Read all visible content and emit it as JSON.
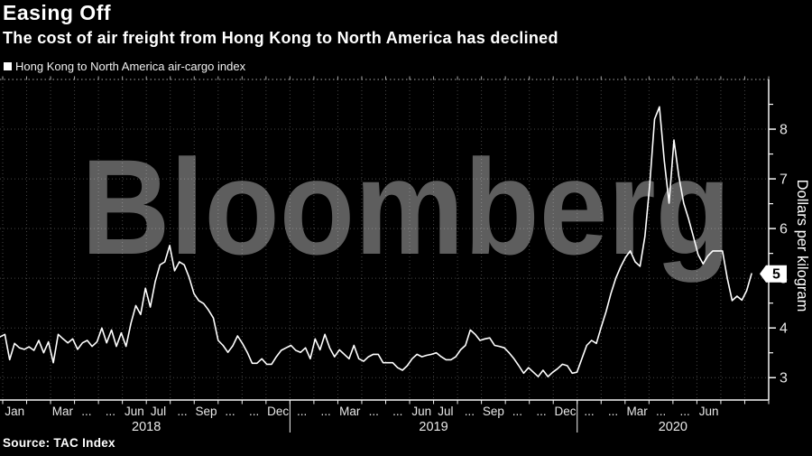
{
  "header": {
    "title": "Easing Off",
    "subtitle": "The cost of air freight from Hong Kong to North America has declined"
  },
  "legend": {
    "label": "Hong Kong to North America air-cargo index"
  },
  "source": "Source: TAC Index",
  "watermark": "Bloomberg",
  "colors": {
    "background": "#000000",
    "text": "#ffffff",
    "line": "#ffffff",
    "grid": "#ffffff",
    "axis": "#f5f5f5",
    "tick_label": "#e8e8e8",
    "watermark": "#5e5e5e",
    "badge_bg": "#ffffff",
    "badge_text": "#000000"
  },
  "chart_data": {
    "type": "line",
    "title": "Easing Off",
    "subtitle": "The cost of air freight from Hong Kong to North America has declined",
    "ylabel": "Dollars per kilogram",
    "xlabel": "",
    "ylim": [
      2.55,
      9.0
    ],
    "yticks": [
      3,
      4,
      5,
      6,
      7,
      8
    ],
    "minor_tick_step": 0.5,
    "grid": true,
    "legend_position": "top-left",
    "last_price_label": "5",
    "total_months": 32,
    "x_months": [
      "Jan",
      null,
      "Mar",
      "...",
      "...",
      "Jun",
      "Jul",
      "...",
      "Sep",
      "...",
      "...",
      "Dec",
      "...",
      "...",
      "Mar",
      "...",
      "...",
      "Jun",
      "Jul",
      "...",
      "Sep",
      "...",
      "...",
      "Dec",
      "...",
      "...",
      "Mar",
      "...",
      "...",
      "Jun"
    ],
    "years": [
      {
        "label": "2018",
        "start": 0,
        "end": 12
      },
      {
        "label": "2019",
        "start": 12,
        "end": 24
      },
      {
        "label": "2020",
        "start": 24,
        "end": 32
      }
    ],
    "series": [
      {
        "name": "Hong Kong to North America air-cargo index",
        "values": [
          3.82,
          3.87,
          3.36,
          3.69,
          3.6,
          3.57,
          3.62,
          3.55,
          3.75,
          3.5,
          3.72,
          3.3,
          3.87,
          3.78,
          3.7,
          3.78,
          3.57,
          3.7,
          3.75,
          3.63,
          3.72,
          4.0,
          3.7,
          3.96,
          3.63,
          3.9,
          3.63,
          4.09,
          4.45,
          4.27,
          4.8,
          4.42,
          4.93,
          5.27,
          5.33,
          5.66,
          5.15,
          5.33,
          5.27,
          5.02,
          4.69,
          4.55,
          4.49,
          4.36,
          4.2,
          3.75,
          3.65,
          3.51,
          3.64,
          3.84,
          3.69,
          3.51,
          3.29,
          3.29,
          3.38,
          3.27,
          3.27,
          3.42,
          3.55,
          3.6,
          3.65,
          3.55,
          3.51,
          3.6,
          3.38,
          3.78,
          3.56,
          3.87,
          3.6,
          3.42,
          3.56,
          3.47,
          3.38,
          3.65,
          3.38,
          3.33,
          3.42,
          3.47,
          3.47,
          3.3,
          3.3,
          3.3,
          3.2,
          3.15,
          3.24,
          3.38,
          3.47,
          3.42,
          3.45,
          3.47,
          3.5,
          3.42,
          3.36,
          3.36,
          3.42,
          3.56,
          3.65,
          3.96,
          3.87,
          3.75,
          3.78,
          3.8,
          3.65,
          3.63,
          3.6,
          3.5,
          3.38,
          3.24,
          3.09,
          3.2,
          3.11,
          3.02,
          3.15,
          3.02,
          3.11,
          3.18,
          3.27,
          3.24,
          3.09,
          3.11,
          3.38,
          3.65,
          3.75,
          3.69,
          4.02,
          4.33,
          4.69,
          5.0,
          5.23,
          5.42,
          5.55,
          5.33,
          5.24,
          5.84,
          6.87,
          8.2,
          8.45,
          7.36,
          6.51,
          7.78,
          7.05,
          6.51,
          6.2,
          5.84,
          5.47,
          5.29,
          5.45,
          5.55,
          5.55,
          5.55,
          5.0,
          4.55,
          4.64,
          4.56,
          4.75,
          5.09
        ]
      }
    ]
  }
}
